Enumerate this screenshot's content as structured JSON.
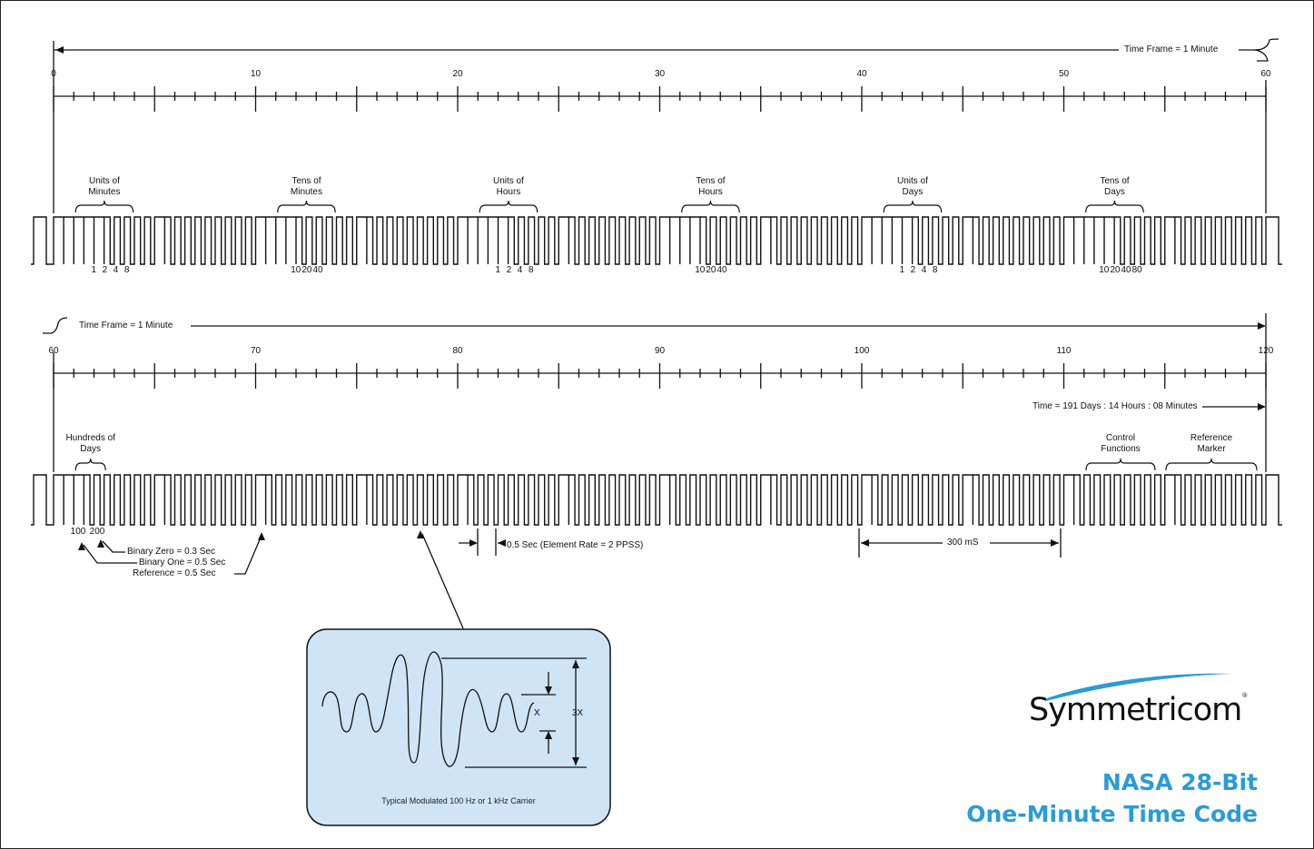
{
  "row1": {
    "frame_label": "Time Frame = 1 Minute",
    "scale_labels": [
      "0",
      "10",
      "20",
      "30",
      "40",
      "50",
      "60"
    ],
    "groups": [
      {
        "label": [
          "Units of",
          "Minutes"
        ],
        "weights": [
          "1",
          "2",
          "4",
          "8"
        ]
      },
      {
        "label": [
          "Tens of",
          "Minutes"
        ],
        "weights": [
          "10",
          "20",
          "40"
        ]
      },
      {
        "label": [
          "Units of",
          "Hours"
        ],
        "weights": [
          "1",
          "2",
          "4",
          "8"
        ]
      },
      {
        "label": [
          "Tens of",
          "Hours"
        ],
        "weights": [
          "10",
          "20",
          "40"
        ]
      },
      {
        "label": [
          "Units of",
          "Days"
        ],
        "weights": [
          "1",
          "2",
          "4",
          "8"
        ]
      },
      {
        "label": [
          "Tens of",
          "Days"
        ],
        "weights": [
          "10",
          "20",
          "40",
          "80"
        ]
      }
    ]
  },
  "row2": {
    "frame_label": "Time Frame = 1 Minute",
    "scale_labels": [
      "60",
      "70",
      "80",
      "90",
      "100",
      "110",
      "120"
    ],
    "time_label": "Time = 191 Days : 14 Hours : 08 Minutes",
    "groups": [
      {
        "label": [
          "Hundreds of",
          "Days"
        ],
        "weights": [
          "100",
          "200"
        ]
      },
      {
        "label": [
          "Control",
          "Functions"
        ],
        "weights": []
      },
      {
        "label": [
          "Reference",
          "Marker"
        ],
        "weights": []
      }
    ]
  },
  "annotations": {
    "binary_zero": "Binary Zero = 0.3 Sec",
    "binary_one": "Binary One = 0.5 Sec",
    "reference": "Reference = 0.5 Sec",
    "element_rate": "0.5 Sec (Element Rate = 2 PPSS)",
    "duration": "300 mS"
  },
  "inset": {
    "caption": "Typical Modulated 100 Hz or 1 kHz Carrier",
    "x_label": "X",
    "three_x_label": "3X",
    "background": "#cfe5f5"
  },
  "brand": {
    "name": "Symmetricom",
    "mark": "®",
    "swoosh_color": "#2b9bd6"
  },
  "title": {
    "line1": "NASA 28-Bit",
    "line2": "One-Minute Time Code",
    "color": "#2b9bd6"
  }
}
